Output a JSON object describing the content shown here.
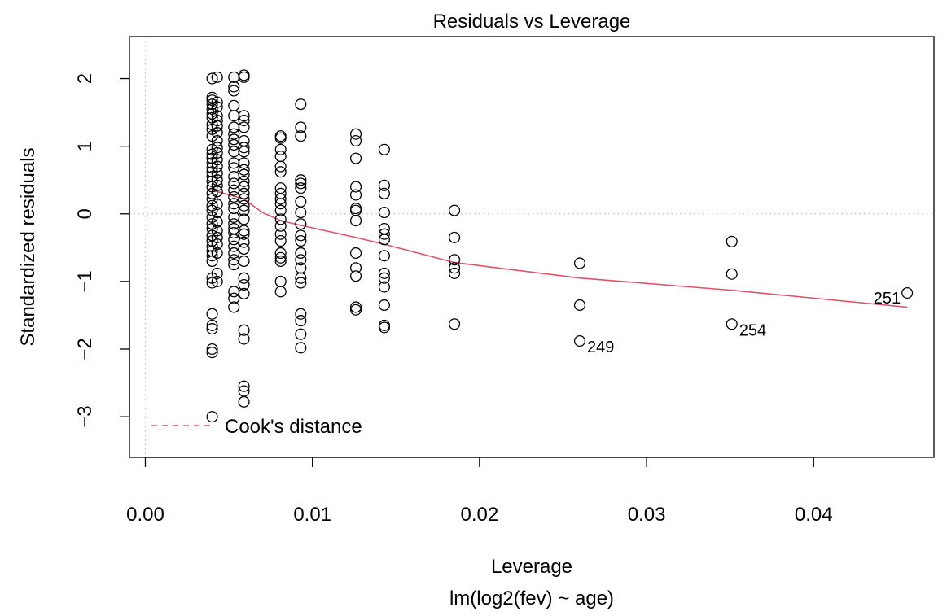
{
  "chart_data": {
    "type": "scatter",
    "title": "Residuals vs Leverage",
    "xlabel": "Leverage",
    "subtitle": "lm(log2(fev) ~ age)",
    "ylabel": "Standardized residuals",
    "xlim": [
      -0.00095,
      0.0472
    ],
    "ylim": [
      -3.6,
      2.62
    ],
    "x_ticks": [
      0.0,
      0.01,
      0.02,
      0.03,
      0.04
    ],
    "x_tick_labels": [
      "0.00",
      "0.01",
      "0.02",
      "0.03",
      "0.04"
    ],
    "y_ticks": [
      -3,
      -2,
      -1,
      0,
      1,
      2
    ],
    "y_tick_labels": [
      "−3",
      "−2",
      "−1",
      "0",
      "1",
      "2"
    ],
    "reference_lines": {
      "x": 0,
      "y": 0,
      "style": "dotted",
      "color": "#bfbfbf"
    },
    "point_groups": [
      {
        "x": 0.004,
        "y": [
          2.0,
          1.72,
          1.68,
          1.62,
          1.55,
          1.48,
          1.42,
          1.32,
          1.25,
          1.15,
          0.95,
          0.88,
          0.82,
          0.75,
          0.68,
          0.62,
          0.55,
          0.48,
          0.4,
          0.3,
          0.22,
          0.12,
          0.05,
          -0.05,
          -0.15,
          -0.22,
          -0.32,
          -0.4,
          -0.48,
          -0.55,
          -0.62,
          -0.7,
          -0.95,
          -1.02,
          -1.48,
          -1.65,
          -1.7,
          -2.0,
          -2.05,
          -3.0
        ]
      },
      {
        "x": 0.0043,
        "y": [
          2.02,
          1.65,
          1.58,
          1.45,
          1.38,
          1.3,
          1.2,
          1.08,
          0.98,
          0.9,
          0.8,
          0.7,
          0.6,
          0.5,
          0.42,
          0.33,
          0.14,
          0.02,
          -0.12,
          -0.25,
          -0.35,
          -0.45,
          -0.58,
          -0.88,
          -1.0
        ]
      },
      {
        "x": 0.0053,
        "y": [
          2.02,
          1.88,
          1.82,
          1.6,
          1.45,
          1.28,
          1.18,
          1.1,
          1.02,
          0.92,
          0.75,
          0.68,
          0.55,
          0.45,
          0.35,
          0.25,
          0.15,
          0.08,
          -0.05,
          -0.15,
          -0.22,
          -0.28,
          -0.38,
          -0.48,
          -0.58,
          -0.68,
          -0.75,
          -1.15,
          -1.25,
          -1.38
        ]
      },
      {
        "x": 0.0059,
        "y": [
          2.05,
          2.02,
          1.45,
          1.38,
          1.28,
          1.08,
          0.98,
          0.92,
          0.75,
          0.65,
          0.58,
          0.48,
          0.4,
          0.3,
          0.22,
          0.12,
          0.05,
          -0.08,
          -0.25,
          -0.3,
          -0.42,
          -0.52,
          -0.7,
          -0.95,
          -1.05,
          -1.18,
          -1.72,
          -1.85,
          -2.55,
          -2.62,
          -2.78
        ]
      },
      {
        "x": 0.0081,
        "y": [
          1.15,
          1.12,
          0.95,
          0.85,
          0.7,
          0.62,
          0.38,
          0.3,
          0.22,
          0.15,
          0.05,
          -0.08,
          -0.18,
          -0.3,
          -0.4,
          -0.58,
          -0.65,
          -0.7,
          -1.0,
          -1.15
        ]
      },
      {
        "x": 0.0093,
        "y": [
          1.62,
          1.28,
          1.15,
          0.5,
          0.45,
          0.38,
          0.18,
          0.02,
          -0.15,
          -0.32,
          -0.4,
          -0.58,
          -0.68,
          -0.8,
          -0.95,
          -1.02,
          -1.48,
          -1.58,
          -1.78,
          -1.98
        ]
      },
      {
        "x": 0.0126,
        "y": [
          1.18,
          1.08,
          0.82,
          0.4,
          0.28,
          0.08,
          0.05,
          -0.1,
          -0.58,
          -0.8,
          -0.92,
          -1.38,
          -1.42
        ]
      },
      {
        "x": 0.0143,
        "y": [
          0.95,
          0.42,
          0.3,
          0.02,
          -0.22,
          -0.3,
          -0.38,
          -0.62,
          -0.88,
          -0.95,
          -1.08,
          -1.35,
          -1.65,
          -1.68
        ]
      },
      {
        "x": 0.0185,
        "y": [
          0.05,
          -0.35,
          -0.68,
          -0.8,
          -0.88,
          -1.63
        ]
      },
      {
        "x": 0.026,
        "y": [
          -0.73,
          -1.35,
          -1.88
        ]
      },
      {
        "x": 0.0351,
        "y": [
          -0.41,
          -0.89,
          -1.63
        ]
      },
      {
        "x": 0.0456,
        "y": [
          -1.17
        ]
      }
    ],
    "labeled_points": [
      {
        "id": "249",
        "x": 0.026,
        "y": -1.88,
        "side": "right"
      },
      {
        "id": "254",
        "x": 0.0351,
        "y": -1.63,
        "side": "right"
      },
      {
        "id": "251",
        "x": 0.0456,
        "y": -1.17,
        "side": "left"
      }
    ],
    "smooth_line": {
      "color": "#df536b",
      "x": [
        0.004,
        0.0059,
        0.007,
        0.0081,
        0.0093,
        0.0126,
        0.0143,
        0.0185,
        0.026,
        0.0351,
        0.0456
      ],
      "y": [
        0.35,
        0.22,
        0.02,
        -0.1,
        -0.17,
        -0.35,
        -0.45,
        -0.72,
        -0.95,
        -1.13,
        -1.38
      ]
    },
    "legend": {
      "position": "bottom-left",
      "entries": [
        {
          "label": "Cook's distance",
          "color": "#df536b",
          "style": "dashed"
        }
      ]
    },
    "grid": false,
    "colors": {
      "points": "#000000",
      "smooth": "#df536b",
      "reference": "#bfbfbf"
    }
  }
}
